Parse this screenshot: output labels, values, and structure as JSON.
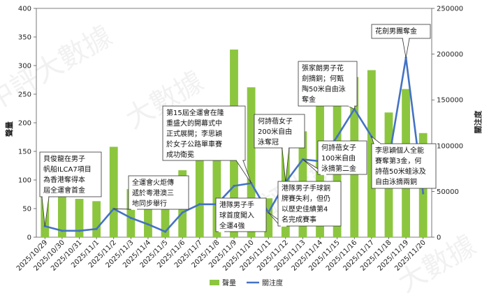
{
  "chart_data": {
    "type": "bar+line",
    "x": [
      "2025/10/29",
      "2025/10/30",
      "2025/10/31",
      "2025/11/1",
      "2025/11/2",
      "2025/11/3",
      "2025/11/4",
      "2025/11/5",
      "2025/11/6",
      "2025/11/7",
      "2025/11/8",
      "2025/11/9",
      "2025/11/10",
      "2025/11/11",
      "2025/11/12",
      "2025/11/13",
      "2025/11/14",
      "2025/11/15",
      "2025/11/16",
      "2025/11/17",
      "2025/11/18",
      "2025/11/19",
      "2025/11/20"
    ],
    "series": [
      {
        "name": "聲量",
        "type": "bar",
        "axis": "left",
        "color": "#8cc63f",
        "values": [
          86,
          83,
          67,
          63,
          158,
          84,
          87,
          60,
          117,
          151,
          143,
          328,
          262,
          68,
          186,
          185,
          230,
          248,
          280,
          292,
          218,
          259,
          182
        ]
      },
      {
        "name": "關注度",
        "type": "line",
        "axis": "right",
        "color": "#4472c4",
        "values": [
          12000,
          7000,
          7000,
          9000,
          31000,
          21000,
          14000,
          6000,
          27000,
          36000,
          36000,
          56000,
          59000,
          27000,
          60000,
          85000,
          83000,
          110000,
          140000,
          110000,
          84000,
          196000,
          48000
        ]
      }
    ],
    "ylabel_left": "聲量",
    "ylabel_right": "關注度",
    "ylim_left": [
      0,
      400
    ],
    "ylim_right": [
      0,
      250000
    ],
    "yticks_left": [
      "0",
      "50",
      "100",
      "150",
      "200",
      "250",
      "300",
      "350",
      "400"
    ],
    "yticks_right": [
      "0",
      "50000",
      "100000",
      "150000",
      "200000",
      "250000"
    ],
    "grid": false,
    "legend_placement": "bottom-center",
    "annotations": [
      {
        "date": "2025/10/29",
        "series": "關注度",
        "text": [
          "貝俊龍在男子",
          "帆船ILCA7項目",
          "為香港奪得本",
          "屆全運會首金"
        ]
      },
      {
        "date": "2025/11/2",
        "series": "關注度",
        "text": [
          "全運會火炬傳",
          "遞於粵港澳三",
          "地同步舉行"
        ]
      },
      {
        "date": "2025/11/10",
        "series": "關注度",
        "text": [
          "第15屆全運會在隆",
          "重盛大的開幕式中",
          "正式展開；李思穎",
          "於女子公路單車賽",
          "成功衛冕"
        ]
      },
      {
        "date": "2025/11/8",
        "series": "關注度",
        "text": [
          "港隊男子手",
          "球首度闖入",
          "全運4強"
        ]
      },
      {
        "date": "2025/11/12",
        "series": "關注度",
        "text": [
          "何詩蓓女子",
          "200米自由",
          "泳奪冠"
        ]
      },
      {
        "date": "2025/11/11",
        "series": "關注度",
        "text": [
          "港隊男子手球銅",
          "牌賽失利，但仍",
          "以歷史佳績第4",
          "名完成賽事"
        ]
      },
      {
        "date": "2025/11/13",
        "series": "關注度",
        "text": [
          "何詩蓓女子",
          "100米自由",
          "泳摘第二金"
        ]
      },
      {
        "date": "2025/11/16",
        "series": "關注度",
        "text": [
          "張家朗男子花",
          "劍摘銅；何甄",
          "陶50米自由泳",
          "奪金"
        ]
      },
      {
        "date": "2025/11/19",
        "series": "關注度",
        "text": [
          "花劍男團奪金"
        ]
      },
      {
        "date": "2025/11/17",
        "series": "關注度",
        "text": [
          "李思穎個人全能",
          "賽奪第3金，何",
          "詩蓓50米蛙泳及",
          "自由泳摘兩銅"
        ]
      }
    ],
    "watermark": [
      "中評大數據",
      "大數據",
      "中評大數據",
      "大數據"
    ]
  }
}
